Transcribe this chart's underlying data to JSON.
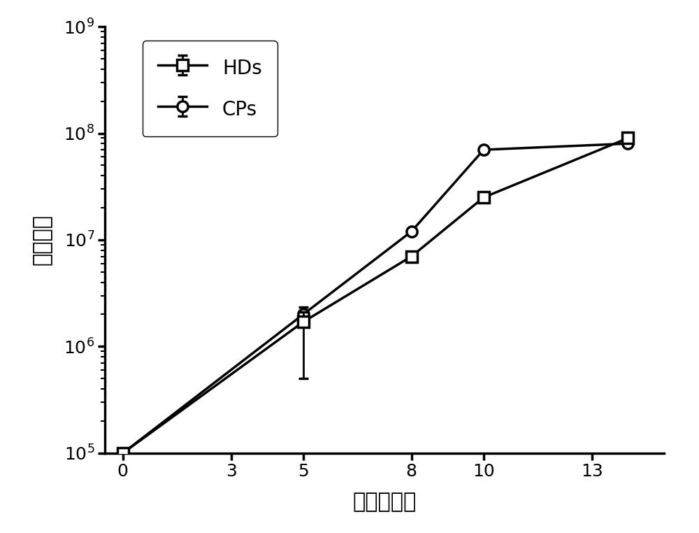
{
  "HDs_x": [
    0,
    5,
    8,
    10,
    14
  ],
  "HDs_y": [
    100000.0,
    1700000.0,
    7000000.0,
    25000000.0,
    90000000.0
  ],
  "HDs_yerr_low": [
    0,
    1200000.0,
    0,
    0,
    0
  ],
  "HDs_yerr_high": [
    0,
    400000.0,
    0,
    0,
    0
  ],
  "CPs_x": [
    0,
    5,
    8,
    10,
    14
  ],
  "CPs_y": [
    100000.0,
    2000000.0,
    12000000.0,
    70000000.0,
    80000000.0
  ],
  "CPs_yerr_low": [
    0,
    350000.0,
    0,
    0,
    0
  ],
  "CPs_yerr_high": [
    0,
    350000.0,
    0,
    0,
    0
  ],
  "xlabel": "时间，天数",
  "ylabel": "总细胞数",
  "ylim_log": [
    100000.0,
    1000000000.0
  ],
  "xlim": [
    -0.5,
    15.0
  ],
  "xticks": [
    0,
    3,
    5,
    8,
    10,
    13
  ],
  "yticks": [
    100000.0,
    1000000.0,
    10000000.0,
    100000000.0,
    1000000000.0
  ],
  "line_color": "#000000",
  "marker_size": 11,
  "linewidth": 2.5,
  "legend_HDs": "HDs",
  "legend_CPs": "CPs",
  "background_color": "#ffffff",
  "axis_fontsize": 22,
  "tick_fontsize": 18,
  "legend_fontsize": 20
}
